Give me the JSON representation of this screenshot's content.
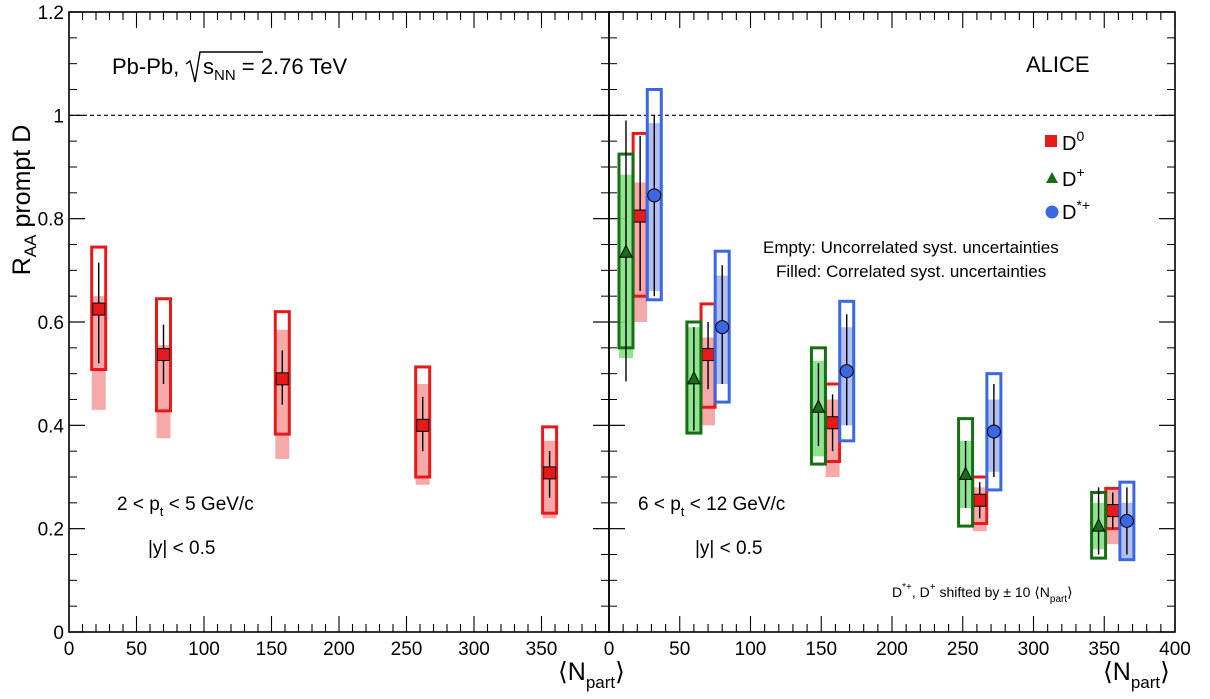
{
  "colors": {
    "d0": "#e8191b",
    "d0_fill": "#f5a0a0",
    "dplus": "#166e16",
    "dplus_fill": "#84e084",
    "dstar": "#3b68e0",
    "dstar_fill": "#a8b8ee",
    "marker_stroke": "#000000"
  },
  "chart_data": {
    "type": "scatter",
    "ylabel": "R_AA prompt D",
    "xlabel": "⟨N_part⟩",
    "ylim": [
      0,
      1.2
    ],
    "y_ticks": [
      "0",
      "0.2",
      "0.4",
      "0.6",
      "0.8",
      "1",
      "1.2"
    ],
    "reference_line": 1,
    "experiment": "ALICE",
    "system_label": "Pb-Pb, √s_NN = 2.76 TeV",
    "legend": {
      "placement": "right",
      "entries": [
        "D0",
        "D+",
        "D*+"
      ],
      "note_empty": "Empty: Uncorrelated syst. uncertainties",
      "note_filled": "Filled: Correlated syst. uncertainties"
    },
    "shift_note": "D*+, D+ shifted by ± 10 ⟨N_part⟩",
    "panels": [
      {
        "id": "left",
        "xlim": [
          0,
          400
        ],
        "x_ticks": [
          "0",
          "50",
          "100",
          "150",
          "200",
          "250",
          "300",
          "350"
        ],
        "pt_label": "2 < p_t < 5 GeV/c",
        "y_label": "|y| < 0.5",
        "series": [
          {
            "name": "D0",
            "points": [
              {
                "x": 22,
                "y": 0.625,
                "stat": [
                  0.52,
                  0.715
                ],
                "uncorr": [
                  0.508,
                  0.745
                ],
                "corr": [
                  0.43,
                  0.65
                ]
              },
              {
                "x": 70,
                "y": 0.537,
                "stat": [
                  0.48,
                  0.595
                ],
                "uncorr": [
                  0.428,
                  0.645
                ],
                "corr": [
                  0.375,
                  0.555
                ]
              },
              {
                "x": 158,
                "y": 0.49,
                "stat": [
                  0.44,
                  0.545
                ],
                "uncorr": [
                  0.383,
                  0.62
                ],
                "corr": [
                  0.335,
                  0.585
                ]
              },
              {
                "x": 262,
                "y": 0.4,
                "stat": [
                  0.35,
                  0.455
                ],
                "uncorr": [
                  0.3,
                  0.513
                ],
                "corr": [
                  0.285,
                  0.48
                ]
              },
              {
                "x": 356,
                "y": 0.308,
                "stat": [
                  0.26,
                  0.35
                ],
                "uncorr": [
                  0.23,
                  0.397
                ],
                "corr": [
                  0.22,
                  0.37
                ]
              }
            ]
          }
        ]
      },
      {
        "id": "right",
        "xlim": [
          0,
          400
        ],
        "x_ticks": [
          "0",
          "50",
          "100",
          "150",
          "200",
          "250",
          "300",
          "350",
          "400"
        ],
        "pt_label": "6 < p_t < 12 GeV/c",
        "y_label": "|y| < 0.5",
        "series": [
          {
            "name": "D0",
            "points": [
              {
                "x": 22,
                "y": 0.805,
                "stat": [
                  0.66,
                  0.96
                ],
                "uncorr": [
                  0.65,
                  0.965
                ],
                "corr": [
                  0.6,
                  0.87
                ]
              },
              {
                "x": 70,
                "y": 0.537,
                "stat": [
                  0.47,
                  0.6
                ],
                "uncorr": [
                  0.435,
                  0.635
                ],
                "corr": [
                  0.4,
                  0.57
                ]
              },
              {
                "x": 158,
                "y": 0.405,
                "stat": [
                  0.35,
                  0.46
                ],
                "uncorr": [
                  0.33,
                  0.48
                ],
                "corr": [
                  0.3,
                  0.45
                ]
              },
              {
                "x": 262,
                "y": 0.255,
                "stat": [
                  0.22,
                  0.29
                ],
                "uncorr": [
                  0.21,
                  0.3
                ],
                "corr": [
                  0.195,
                  0.28
                ]
              },
              {
                "x": 356,
                "y": 0.235,
                "stat": [
                  0.2,
                  0.27
                ],
                "uncorr": [
                  0.2,
                  0.278
                ],
                "corr": [
                  0.17,
                  0.275
                ]
              }
            ]
          },
          {
            "name": "D+",
            "points": [
              {
                "x": 12,
                "y": 0.735,
                "stat": [
                  0.485,
                  0.99
                ],
                "uncorr": [
                  0.55,
                  0.925
                ],
                "corr": [
                  0.53,
                  0.885
                ]
              },
              {
                "x": 60,
                "y": 0.49,
                "stat": [
                  0.39,
                  0.59
                ],
                "uncorr": [
                  0.385,
                  0.6
                ],
                "corr": [
                  0.385,
                  0.59
                ]
              },
              {
                "x": 148,
                "y": 0.435,
                "stat": [
                  0.36,
                  0.52
                ],
                "uncorr": [
                  0.325,
                  0.55
                ],
                "corr": [
                  0.34,
                  0.525
                ]
              },
              {
                "x": 252,
                "y": 0.305,
                "stat": [
                  0.24,
                  0.37
                ],
                "uncorr": [
                  0.205,
                  0.413
                ],
                "corr": [
                  0.24,
                  0.37
                ]
              },
              {
                "x": 346,
                "y": 0.205,
                "stat": [
                  0.15,
                  0.28
                ],
                "uncorr": [
                  0.143,
                  0.27
                ],
                "corr": [
                  0.16,
                  0.25
                ]
              }
            ]
          },
          {
            "name": "D*+",
            "points": [
              {
                "x": 32,
                "y": 0.845,
                "stat": [
                  0.65,
                  1.0
                ],
                "uncorr": [
                  0.643,
                  1.05
                ],
                "corr": [
                  0.66,
                  0.985
                ]
              },
              {
                "x": 80,
                "y": 0.59,
                "stat": [
                  0.48,
                  0.71
                ],
                "uncorr": [
                  0.445,
                  0.737
                ],
                "corr": [
                  0.48,
                  0.69
                ]
              },
              {
                "x": 168,
                "y": 0.505,
                "stat": [
                  0.4,
                  0.615
                ],
                "uncorr": [
                  0.37,
                  0.64
                ],
                "corr": [
                  0.4,
                  0.59
                ]
              },
              {
                "x": 272,
                "y": 0.388,
                "stat": [
                  0.3,
                  0.48
                ],
                "uncorr": [
                  0.275,
                  0.5
                ],
                "corr": [
                  0.31,
                  0.45
                ]
              },
              {
                "x": 366,
                "y": 0.215,
                "stat": [
                  0.15,
                  0.28
                ],
                "uncorr": [
                  0.14,
                  0.29
                ],
                "corr": [
                  0.14,
                  0.25
                ]
              }
            ]
          }
        ]
      }
    ]
  }
}
